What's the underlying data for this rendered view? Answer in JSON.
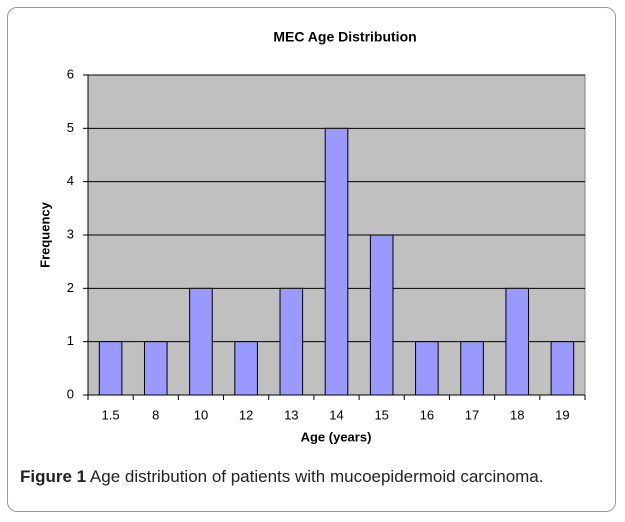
{
  "chart_data": {
    "type": "bar",
    "title": "MEC Age Distribution",
    "x_label": "Age (years)",
    "y_label": "Frequency",
    "categories": [
      "1.5",
      "8",
      "10",
      "12",
      "13",
      "14",
      "15",
      "16",
      "17",
      "18",
      "19"
    ],
    "values": [
      1,
      1,
      2,
      1,
      2,
      5,
      3,
      1,
      1,
      2,
      1
    ],
    "color": "#9999ff",
    "ylim": [
      0,
      6
    ],
    "yticks": [
      0,
      1,
      2,
      3,
      4,
      5,
      6
    ],
    "grid": true
  },
  "caption": {
    "label": "Figure 1",
    "text": "Age distribution of patients with mucoepidermoid carcinoma."
  }
}
